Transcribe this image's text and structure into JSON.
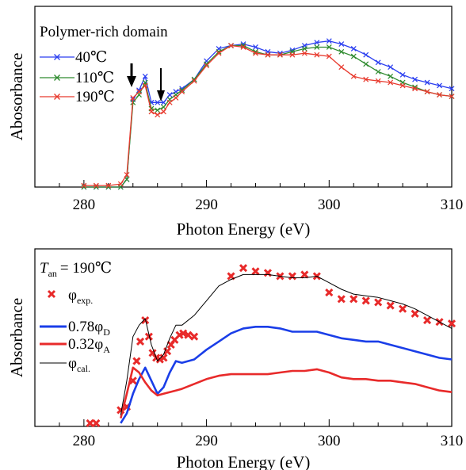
{
  "chart_data": [
    {
      "type": "line",
      "title": "Polymer-rich domain",
      "xlabel": "Photon Energy (eV)",
      "ylabel": "Abosorbance",
      "xlim": [
        276,
        310
      ],
      "ylim": [
        0,
        1
      ],
      "xticks": [
        "280",
        "290",
        "300",
        "310"
      ],
      "legend_position": "top-left",
      "grid": false,
      "annotations": [
        "arrow at ~284 eV",
        "arrow at ~286.3 eV"
      ],
      "series": [
        {
          "name": "40℃",
          "color": "#2a3ef0",
          "marker": "x",
          "x": [
            280,
            281,
            282,
            283,
            283.5,
            284,
            284.5,
            285,
            285.5,
            286,
            286.5,
            287,
            287.5,
            288,
            289,
            290,
            291,
            292,
            293,
            294,
            295,
            296,
            297,
            298,
            299,
            300,
            301,
            302,
            303,
            304,
            305,
            306,
            307,
            308,
            309,
            310
          ],
          "y": [
            0.0,
            0.0,
            0.0,
            0.0,
            0.05,
            0.57,
            0.63,
            0.72,
            0.55,
            0.55,
            0.55,
            0.6,
            0.62,
            0.64,
            0.7,
            0.82,
            0.9,
            0.92,
            0.93,
            0.91,
            0.88,
            0.87,
            0.89,
            0.92,
            0.94,
            0.95,
            0.93,
            0.9,
            0.86,
            0.81,
            0.78,
            0.73,
            0.7,
            0.68,
            0.66,
            0.64
          ]
        },
        {
          "name": "110℃",
          "color": "#2e8a2e",
          "marker": "x",
          "x": [
            280,
            281,
            282,
            283,
            283.5,
            284,
            284.5,
            285,
            285.5,
            286,
            286.5,
            287,
            287.5,
            288,
            289,
            290,
            291,
            292,
            293,
            294,
            295,
            296,
            297,
            298,
            299,
            300,
            301,
            302,
            303,
            304,
            305,
            306,
            307,
            308,
            309,
            310
          ],
          "y": [
            0.0,
            0.0,
            0.0,
            0.0,
            0.05,
            0.55,
            0.6,
            0.68,
            0.51,
            0.5,
            0.52,
            0.57,
            0.6,
            0.63,
            0.7,
            0.8,
            0.88,
            0.92,
            0.92,
            0.88,
            0.86,
            0.86,
            0.88,
            0.9,
            0.91,
            0.91,
            0.88,
            0.85,
            0.8,
            0.75,
            0.72,
            0.68,
            0.65,
            0.62,
            0.6,
            0.59
          ]
        },
        {
          "name": "190℃",
          "color": "#e83a2e",
          "marker": "x",
          "x": [
            280,
            281,
            282,
            283,
            283.5,
            284,
            284.5,
            285,
            285.5,
            286,
            286.5,
            287,
            287.5,
            288,
            289,
            290,
            291,
            292,
            293,
            294,
            295,
            296,
            297,
            298,
            299,
            300,
            301,
            302,
            303,
            304,
            305,
            306,
            307,
            308,
            309,
            310
          ],
          "y": [
            0.01,
            0.01,
            0.01,
            0.02,
            0.08,
            0.58,
            0.62,
            0.66,
            0.49,
            0.47,
            0.49,
            0.55,
            0.58,
            0.62,
            0.69,
            0.79,
            0.87,
            0.92,
            0.91,
            0.87,
            0.86,
            0.86,
            0.86,
            0.87,
            0.86,
            0.85,
            0.78,
            0.72,
            0.7,
            0.69,
            0.68,
            0.66,
            0.64,
            0.62,
            0.6,
            0.59
          ]
        }
      ]
    },
    {
      "type": "line",
      "title": "",
      "annotation_label": "T",
      "annotation_sub": "an",
      "annotation_value": "=  190℃",
      "xlabel": "Photon Energy (eV)",
      "ylabel": "Absorbance",
      "xlim": [
        276,
        310
      ],
      "ylim": [
        0,
        1
      ],
      "xticks": [
        "280",
        "290",
        "300",
        "310"
      ],
      "legend_position": "left",
      "grid": false,
      "legend": {
        "exp_base": "φ",
        "exp_sub": "exp.",
        "d_base": "0.78φ",
        "d_sub": "D",
        "a_base": "0.32φ",
        "a_sub": "A",
        "cal_base": "φ",
        "cal_sub": "cal."
      },
      "series": [
        {
          "name": "φexp.",
          "color": "#e82a2a",
          "marker": "x",
          "line": false,
          "x": [
            280.5,
            281,
            283,
            283.5,
            284,
            284.3,
            284.6,
            285,
            285.3,
            285.6,
            285.9,
            286.2,
            286.5,
            286.8,
            287.1,
            287.4,
            287.8,
            288.1,
            288.5,
            289,
            292,
            293,
            294,
            295,
            296,
            297,
            298,
            299,
            300,
            301,
            302,
            303,
            304,
            305,
            306,
            307,
            308,
            309,
            310
          ],
          "y": [
            0.02,
            0.02,
            0.1,
            0.12,
            0.28,
            0.4,
            0.52,
            0.65,
            0.55,
            0.45,
            0.42,
            0.41,
            0.42,
            0.46,
            0.5,
            0.53,
            0.56,
            0.57,
            0.56,
            0.55,
            0.92,
            0.97,
            0.95,
            0.94,
            0.92,
            0.92,
            0.93,
            0.92,
            0.82,
            0.78,
            0.78,
            0.77,
            0.76,
            0.74,
            0.72,
            0.69,
            0.65,
            0.64,
            0.63
          ]
        },
        {
          "name": "0.78φD",
          "color": "#1a3ee8",
          "marker": "none",
          "x": [
            283,
            283.5,
            284,
            284.5,
            285,
            285.5,
            286,
            286.5,
            287,
            287.5,
            288,
            289,
            290,
            291,
            292,
            293,
            294,
            295,
            296,
            297,
            298,
            299,
            300,
            301,
            302,
            303,
            304,
            305,
            306,
            307,
            308,
            309,
            310
          ],
          "y": [
            0.02,
            0.08,
            0.2,
            0.29,
            0.36,
            0.28,
            0.2,
            0.24,
            0.33,
            0.4,
            0.39,
            0.41,
            0.47,
            0.52,
            0.57,
            0.6,
            0.61,
            0.61,
            0.6,
            0.58,
            0.58,
            0.58,
            0.56,
            0.54,
            0.53,
            0.52,
            0.52,
            0.5,
            0.48,
            0.46,
            0.44,
            0.42,
            0.41
          ]
        },
        {
          "name": "0.32φA",
          "color": "#e82a2a",
          "marker": "none",
          "x": [
            283,
            283.5,
            284,
            284.5,
            285,
            285.5,
            286,
            286.5,
            287,
            287.5,
            288,
            289,
            290,
            291,
            292,
            293,
            294,
            295,
            296,
            297,
            298,
            299,
            300,
            301,
            302,
            303,
            304,
            305,
            306,
            307,
            308,
            309,
            310
          ],
          "y": [
            0.05,
            0.2,
            0.36,
            0.33,
            0.27,
            0.22,
            0.19,
            0.2,
            0.21,
            0.22,
            0.23,
            0.26,
            0.29,
            0.31,
            0.32,
            0.32,
            0.32,
            0.32,
            0.33,
            0.34,
            0.34,
            0.35,
            0.33,
            0.3,
            0.29,
            0.29,
            0.28,
            0.28,
            0.27,
            0.26,
            0.24,
            0.22,
            0.21
          ]
        },
        {
          "name": "φcal.",
          "color": "#000000",
          "marker": "none",
          "x": [
            283,
            283.5,
            284,
            284.5,
            285,
            285.5,
            286,
            286.5,
            287,
            287.5,
            288,
            289,
            290,
            291,
            292,
            293,
            294,
            295,
            296,
            297,
            298,
            299,
            300,
            301,
            302,
            303,
            304,
            305,
            306,
            307,
            308,
            309,
            310
          ],
          "y": [
            0.07,
            0.28,
            0.55,
            0.62,
            0.66,
            0.5,
            0.4,
            0.44,
            0.54,
            0.62,
            0.62,
            0.68,
            0.77,
            0.86,
            0.9,
            0.93,
            0.93,
            0.93,
            0.92,
            0.91,
            0.91,
            0.92,
            0.88,
            0.84,
            0.81,
            0.8,
            0.79,
            0.77,
            0.75,
            0.72,
            0.68,
            0.64,
            0.6
          ]
        }
      ]
    }
  ]
}
